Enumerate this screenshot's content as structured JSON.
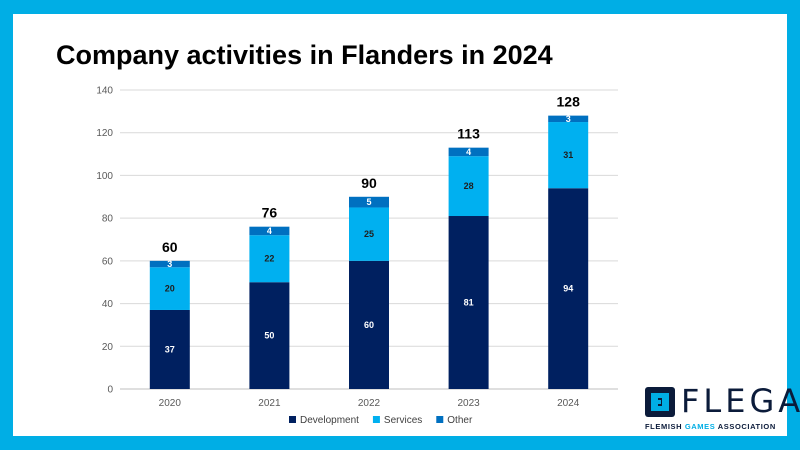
{
  "title": "Company activities in Flanders in 2024",
  "chart_data": {
    "type": "bar",
    "stacked": true,
    "title": "Company activities in Flanders in 2024",
    "categories": [
      "2020",
      "2021",
      "2022",
      "2023",
      "2024"
    ],
    "series": [
      {
        "name": "Development",
        "color": "#002060",
        "label_color": "#ffffff",
        "values": [
          37,
          50,
          60,
          81,
          94
        ]
      },
      {
        "name": "Services",
        "color": "#00b0f0",
        "label_color": "#1f1f1f",
        "values": [
          20,
          22,
          25,
          28,
          31
        ]
      },
      {
        "name": "Other",
        "color": "#0070c0",
        "label_color": "#ffffff",
        "values": [
          3,
          4,
          5,
          4,
          3
        ]
      }
    ],
    "totals": [
      60,
      76,
      90,
      113,
      128
    ],
    "ylim": [
      0,
      140
    ],
    "yticks": [
      0,
      20,
      40,
      60,
      80,
      100,
      120,
      140
    ],
    "grid": true,
    "legend": "bottom"
  },
  "logo": {
    "name": "FLEGA",
    "subtitle_parts": [
      "FLEMISH ",
      "GAMES",
      " ASSOCIATION"
    ]
  }
}
